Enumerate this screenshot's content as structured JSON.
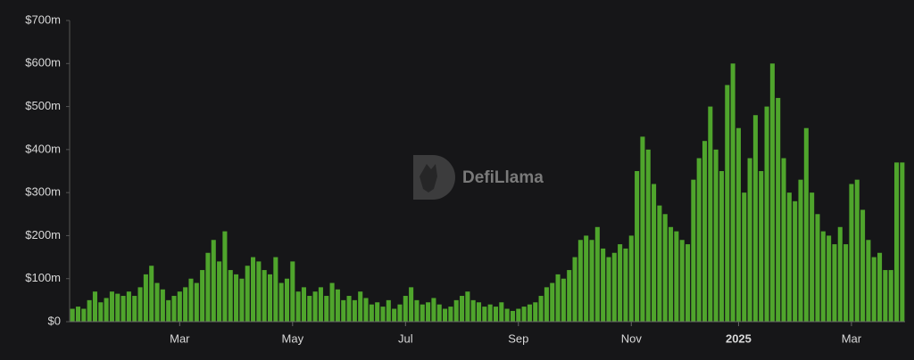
{
  "chart_data": {
    "type": "bar",
    "watermark": "DefiLlama",
    "color": "#4fa52c",
    "categories": [
      null,
      null,
      null,
      null,
      null,
      null,
      null,
      null,
      null,
      null,
      null,
      null,
      null,
      null,
      null,
      null,
      null,
      null,
      null,
      "Mar",
      null,
      null,
      null,
      null,
      null,
      null,
      null,
      null,
      null,
      null,
      null,
      null,
      null,
      null,
      null,
      null,
      null,
      null,
      null,
      "May",
      null,
      null,
      null,
      null,
      null,
      null,
      null,
      null,
      null,
      null,
      null,
      null,
      null,
      null,
      null,
      null,
      null,
      null,
      null,
      "Jul",
      null,
      null,
      null,
      null,
      null,
      null,
      null,
      null,
      null,
      null,
      null,
      null,
      null,
      null,
      null,
      null,
      null,
      null,
      null,
      "Sep",
      null,
      null,
      null,
      null,
      null,
      null,
      null,
      null,
      null,
      null,
      null,
      null,
      null,
      null,
      null,
      null,
      null,
      null,
      null,
      "Nov",
      null,
      null,
      null,
      null,
      null,
      null,
      null,
      null,
      null,
      null,
      null,
      null,
      null,
      null,
      null,
      null,
      null,
      null,
      "2025",
      null,
      null,
      null,
      null,
      null,
      null,
      null,
      null,
      null,
      null,
      null,
      null,
      null,
      null,
      null,
      null,
      null,
      null,
      null,
      "Mar",
      null,
      null,
      null,
      null,
      null,
      null,
      null,
      null,
      null
    ],
    "values": [
      30,
      35,
      30,
      50,
      70,
      45,
      55,
      70,
      65,
      60,
      70,
      60,
      80,
      110,
      130,
      90,
      75,
      50,
      60,
      70,
      80,
      100,
      90,
      120,
      160,
      190,
      140,
      210,
      120,
      110,
      100,
      130,
      150,
      140,
      120,
      110,
      150,
      90,
      100,
      140,
      70,
      80,
      60,
      70,
      80,
      60,
      90,
      75,
      50,
      60,
      50,
      70,
      55,
      40,
      45,
      35,
      50,
      30,
      40,
      60,
      80,
      50,
      40,
      45,
      55,
      40,
      30,
      35,
      50,
      60,
      70,
      50,
      45,
      35,
      40,
      35,
      45,
      30,
      25,
      30,
      35,
      40,
      45,
      60,
      80,
      90,
      110,
      100,
      120,
      150,
      190,
      200,
      190,
      220,
      170,
      150,
      160,
      180,
      170,
      200,
      350,
      430,
      400,
      320,
      270,
      250,
      220,
      210,
      190,
      180,
      330,
      380,
      420,
      500,
      400,
      350,
      550,
      600,
      450,
      300,
      380,
      480,
      350,
      500,
      600,
      520,
      380,
      300,
      280,
      330,
      450,
      300,
      250,
      210,
      200,
      180,
      220,
      180,
      320,
      330,
      260,
      190,
      150,
      160,
      120,
      120,
      370,
      370
    ],
    "ylim": [
      0,
      700
    ],
    "yticks": [
      {
        "value": 0,
        "label": "$0"
      },
      {
        "value": 100,
        "label": "$100m"
      },
      {
        "value": 200,
        "label": "$200m"
      },
      {
        "value": 300,
        "label": "$300m"
      },
      {
        "value": 400,
        "label": "$400m"
      },
      {
        "value": 500,
        "label": "$500m"
      },
      {
        "value": 600,
        "label": "$600m"
      },
      {
        "value": 700,
        "label": "$700m"
      }
    ],
    "grid": false
  }
}
